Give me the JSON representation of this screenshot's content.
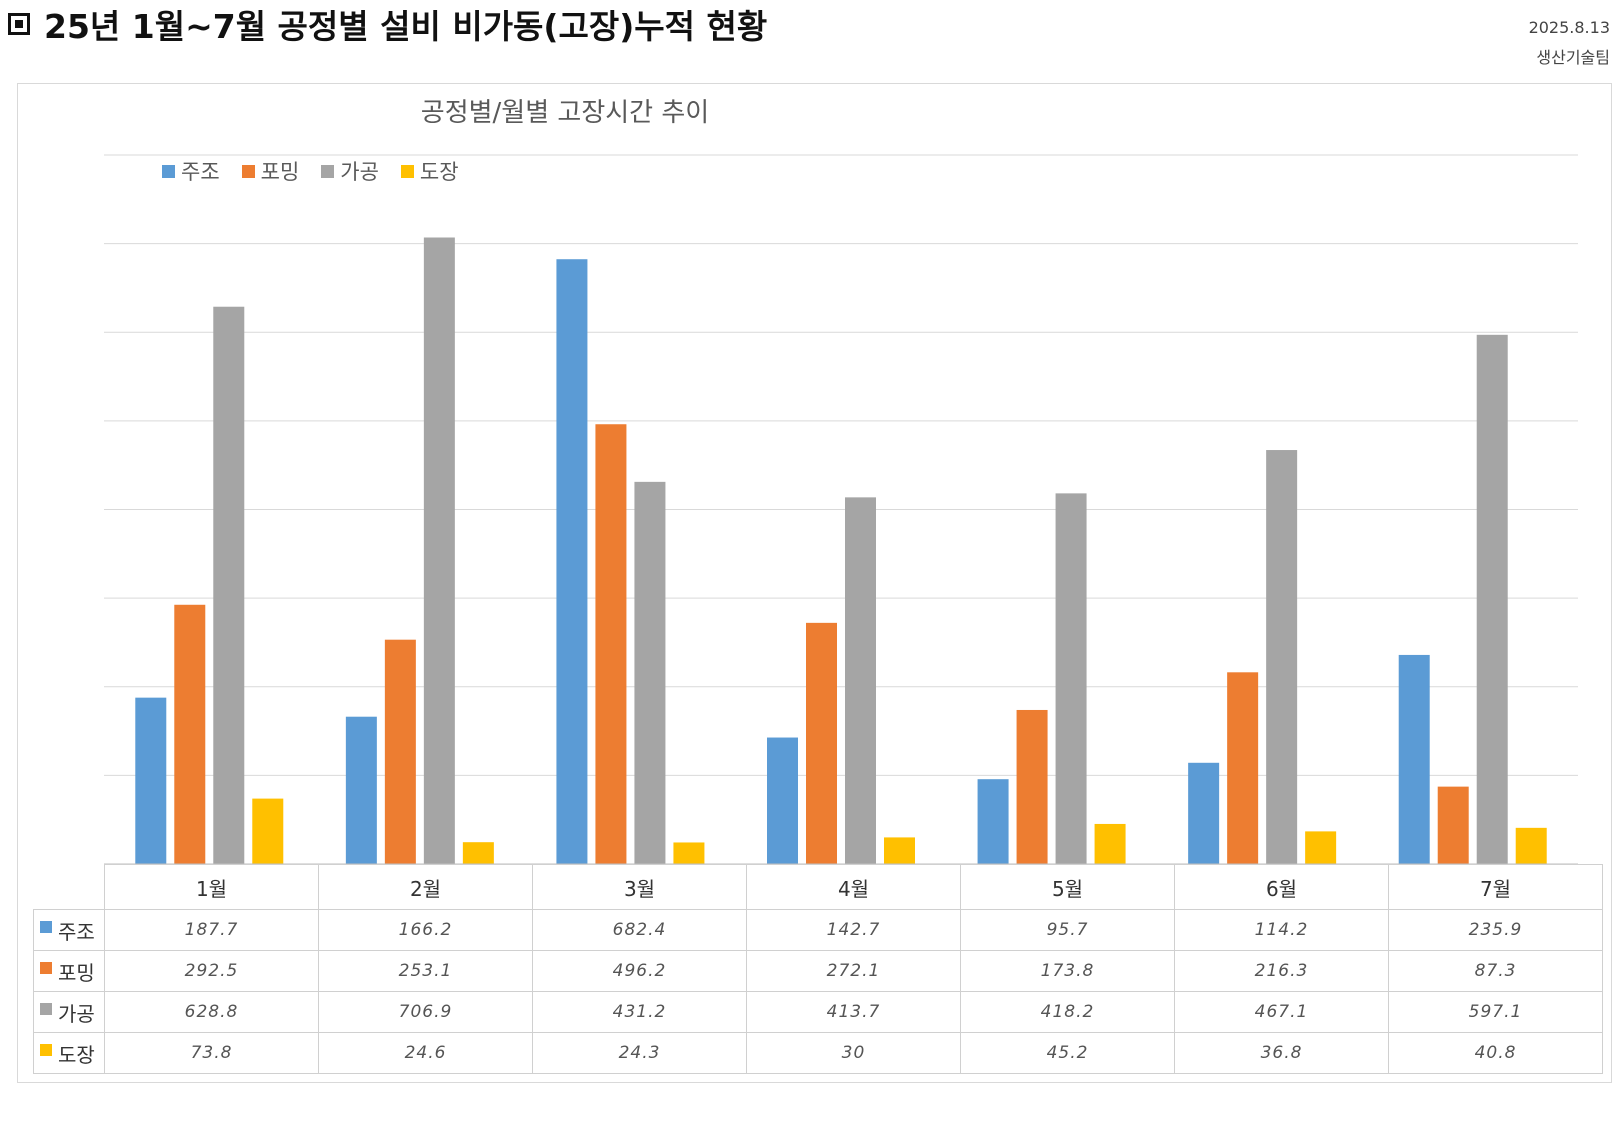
{
  "header": {
    "title": "25년 1월~7월 공정별 설비 비가동(고장)누적 현황",
    "date": "2025.8.13",
    "team": "생산기술팀"
  },
  "chart_data": {
    "type": "bar",
    "title": "공정별/월별 고장시간 추이",
    "categories": [
      "1월",
      "2월",
      "3월",
      "4월",
      "5월",
      "6월",
      "7월"
    ],
    "series": [
      {
        "name": "주조",
        "color": "#5B9BD5",
        "values": [
          187.7,
          166.2,
          682.4,
          142.7,
          95.7,
          114.2,
          235.9
        ]
      },
      {
        "name": "포밍",
        "color": "#ED7D31",
        "values": [
          292.5,
          253.1,
          496.2,
          272.1,
          173.8,
          216.3,
          87.3
        ]
      },
      {
        "name": "가공",
        "color": "#A5A5A5",
        "values": [
          628.8,
          706.9,
          431.2,
          413.7,
          418.2,
          467.1,
          597.1
        ]
      },
      {
        "name": "도장",
        "color": "#FFC000",
        "values": [
          73.8,
          24.6,
          24.3,
          30,
          45.2,
          36.8,
          40.8
        ]
      }
    ],
    "ylim": [
      0,
      800
    ],
    "grid": true,
    "legend": "top-left"
  }
}
